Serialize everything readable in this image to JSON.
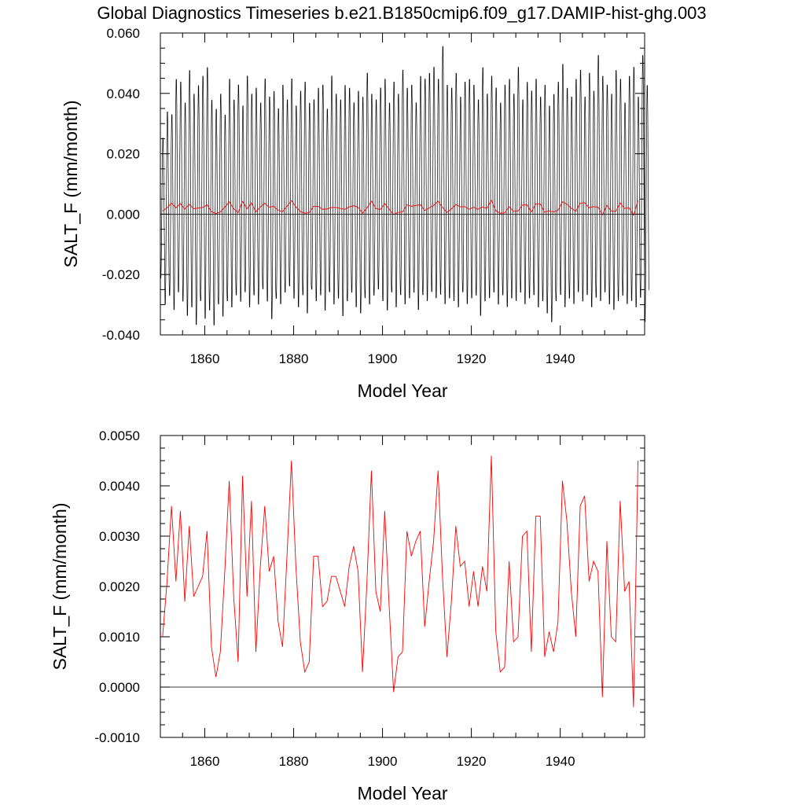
{
  "title": "Global Diagnostics Timeseries b.e21.B1850cmip6.f09_g17.DAMIP-hist-ghg.003",
  "colors": {
    "monthly": "#000000",
    "annual": "#ff0000",
    "zero_line": "#000000"
  },
  "chart_data": [
    {
      "type": "line",
      "xlabel": "Model Year",
      "ylabel": "SALT_F (mm/month)",
      "xlim": [
        1850,
        1959
      ],
      "ylim": [
        -0.04,
        0.06
      ],
      "xticks": [
        1860,
        1880,
        1900,
        1920,
        1940
      ],
      "yticks": [
        -0.04,
        -0.02,
        0.0,
        0.02,
        0.04,
        0.06
      ],
      "ytick_labels": [
        "-0.040",
        "-0.020",
        "0.000",
        "0.020",
        "0.040",
        "0.060"
      ],
      "zero_line": true,
      "grid": false,
      "series": [
        {
          "kind": "monthly",
          "description": "monthly values, oscillating seasonally",
          "start_year": 1850,
          "annual_peak_max": [
            0.026,
            0.035,
            0.034,
            0.046,
            0.045,
            0.038,
            0.049,
            0.041,
            0.044,
            0.047,
            0.05,
            0.039,
            0.036,
            0.041,
            0.034,
            0.046,
            0.039,
            0.044,
            0.037,
            0.047,
            0.041,
            0.043,
            0.038,
            0.046,
            0.04,
            0.042,
            0.036,
            0.044,
            0.039,
            0.046,
            0.037,
            0.042,
            0.045,
            0.038,
            0.039,
            0.043,
            0.044,
            0.036,
            0.047,
            0.041,
            0.039,
            0.044,
            0.043,
            0.038,
            0.042,
            0.04,
            0.048,
            0.041,
            0.039,
            0.043,
            0.046,
            0.038,
            0.045,
            0.041,
            0.049,
            0.043,
            0.044,
            0.038,
            0.047,
            0.046,
            0.048,
            0.05,
            0.046,
            0.057,
            0.044,
            0.043,
            0.048,
            0.04,
            0.045,
            0.046,
            0.044,
            0.039,
            0.05,
            0.041,
            0.047,
            0.043,
            0.038,
            0.044,
            0.046,
            0.041,
            0.05,
            0.039,
            0.045,
            0.042,
            0.046,
            0.04,
            0.044,
            0.037,
            0.041,
            0.045,
            0.051,
            0.043,
            0.04,
            0.046,
            0.049,
            0.04,
            0.048,
            0.042,
            0.054,
            0.047,
            0.044,
            0.041,
            0.049,
            0.046,
            0.038,
            0.047,
            0.05,
            0.04,
            0.054,
            0.044
          ],
          "annual_trough_min": [
            -0.022,
            -0.031,
            -0.028,
            -0.033,
            -0.027,
            -0.03,
            -0.035,
            -0.032,
            -0.038,
            -0.03,
            -0.036,
            -0.033,
            -0.038,
            -0.031,
            -0.035,
            -0.03,
            -0.032,
            -0.028,
            -0.03,
            -0.027,
            -0.032,
            -0.028,
            -0.031,
            -0.026,
            -0.03,
            -0.036,
            -0.029,
            -0.031,
            -0.027,
            -0.025,
            -0.029,
            -0.032,
            -0.028,
            -0.034,
            -0.026,
            -0.03,
            -0.028,
            -0.033,
            -0.027,
            -0.031,
            -0.029,
            -0.035,
            -0.03,
            -0.027,
            -0.032,
            -0.034,
            -0.029,
            -0.031,
            -0.028,
            -0.026,
            -0.03,
            -0.033,
            -0.027,
            -0.032,
            -0.028,
            -0.031,
            -0.029,
            -0.027,
            -0.033,
            -0.028,
            -0.03,
            -0.027,
            -0.029,
            -0.028,
            -0.031,
            -0.029,
            -0.03,
            -0.032,
            -0.027,
            -0.031,
            -0.029,
            -0.028,
            -0.035,
            -0.03,
            -0.029,
            -0.027,
            -0.031,
            -0.028,
            -0.032,
            -0.029,
            -0.03,
            -0.027,
            -0.031,
            -0.029,
            -0.028,
            -0.032,
            -0.03,
            -0.034,
            -0.037,
            -0.03,
            -0.028,
            -0.032,
            -0.029,
            -0.031,
            -0.027,
            -0.03,
            -0.028,
            -0.032,
            -0.029,
            -0.03,
            -0.027,
            -0.031,
            -0.033,
            -0.03,
            -0.028,
            -0.031,
            -0.03,
            -0.032,
            -0.029,
            -0.037
          ]
        },
        {
          "kind": "annual",
          "description": "annual mean",
          "start_year": 1850,
          "values": [
            0.001,
            0.0021,
            0.0036,
            0.0021,
            0.0035,
            0.0017,
            0.0032,
            0.0018,
            0.002,
            0.0022,
            0.0031,
            0.0008,
            0.0002,
            0.0007,
            0.0023,
            0.0041,
            0.0018,
            0.0005,
            0.0042,
            0.0018,
            0.0037,
            0.0007,
            0.0024,
            0.0036,
            0.0023,
            0.0026,
            0.0013,
            0.0008,
            0.0026,
            0.0045,
            0.0024,
            0.0009,
            0.0003,
            0.0005,
            0.0026,
            0.0026,
            0.0016,
            0.0017,
            0.0022,
            0.0022,
            0.0019,
            0.0016,
            0.0024,
            0.0028,
            0.0023,
            0.0003,
            0.0021,
            0.0043,
            0.0019,
            0.0015,
            0.0035,
            0.0016,
            -0.0001,
            0.0006,
            0.0007,
            0.0031,
            0.0026,
            0.0029,
            0.0031,
            0.0012,
            0.0021,
            0.0029,
            0.0043,
            0.0022,
            0.0006,
            0.0017,
            0.0032,
            0.0024,
            0.0025,
            0.0016,
            0.0023,
            0.0016,
            0.0024,
            0.0019,
            0.0046,
            0.0011,
            0.0003,
            0.0004,
            0.0025,
            0.0009,
            0.001,
            0.003,
            0.0031,
            0.0007,
            0.0034,
            0.0034,
            0.0006,
            0.0011,
            0.0007,
            0.0013,
            0.0041,
            0.0033,
            0.0019,
            0.001,
            0.0036,
            0.0038,
            0.0021,
            0.0025,
            0.0023,
            -0.0002,
            0.0029,
            0.001,
            0.0009,
            0.0037,
            0.0019,
            0.0021,
            -0.0004,
            0.0045
          ]
        }
      ]
    },
    {
      "type": "line",
      "xlabel": "Model Year",
      "ylabel": "SALT_F (mm/month)",
      "xlim": [
        1850,
        1959
      ],
      "ylim": [
        -0.001,
        0.005
      ],
      "xticks": [
        1860,
        1880,
        1900,
        1920,
        1940
      ],
      "yticks": [
        -0.001,
        0.0,
        0.001,
        0.002,
        0.003,
        0.004,
        0.005
      ],
      "ytick_labels": [
        "-0.0010",
        "0.0000",
        "0.0010",
        "0.0020",
        "0.0030",
        "0.0040",
        "0.0050"
      ],
      "zero_line": true,
      "grid": false,
      "series": [
        {
          "kind": "annual",
          "description": "annual mean",
          "start_year": 1850,
          "values": [
            0.001,
            0.0021,
            0.0036,
            0.0021,
            0.0035,
            0.0017,
            0.0032,
            0.0018,
            0.002,
            0.0022,
            0.0031,
            0.0008,
            0.0002,
            0.0007,
            0.0023,
            0.0041,
            0.0018,
            0.0005,
            0.0042,
            0.0018,
            0.0037,
            0.0007,
            0.0024,
            0.0036,
            0.0023,
            0.0026,
            0.0013,
            0.0008,
            0.0026,
            0.0045,
            0.0024,
            0.0009,
            0.0003,
            0.0005,
            0.0026,
            0.0026,
            0.0016,
            0.0017,
            0.0022,
            0.0022,
            0.0019,
            0.0016,
            0.0024,
            0.0028,
            0.0023,
            0.0003,
            0.0021,
            0.0043,
            0.0019,
            0.0015,
            0.0035,
            0.0016,
            -0.0001,
            0.0006,
            0.0007,
            0.0031,
            0.0026,
            0.0029,
            0.0031,
            0.0012,
            0.0021,
            0.0029,
            0.0043,
            0.0022,
            0.0006,
            0.0017,
            0.0032,
            0.0024,
            0.0025,
            0.0016,
            0.0023,
            0.0016,
            0.0024,
            0.0019,
            0.0046,
            0.0011,
            0.0003,
            0.0004,
            0.0025,
            0.0009,
            0.001,
            0.003,
            0.0031,
            0.0007,
            0.0034,
            0.0034,
            0.0006,
            0.0011,
            0.0007,
            0.0013,
            0.0041,
            0.0033,
            0.0019,
            0.001,
            0.0036,
            0.0038,
            0.0021,
            0.0025,
            0.0023,
            -0.0002,
            0.0029,
            0.001,
            0.0009,
            0.0037,
            0.0019,
            0.0021,
            -0.0004,
            0.0045
          ]
        }
      ]
    }
  ]
}
